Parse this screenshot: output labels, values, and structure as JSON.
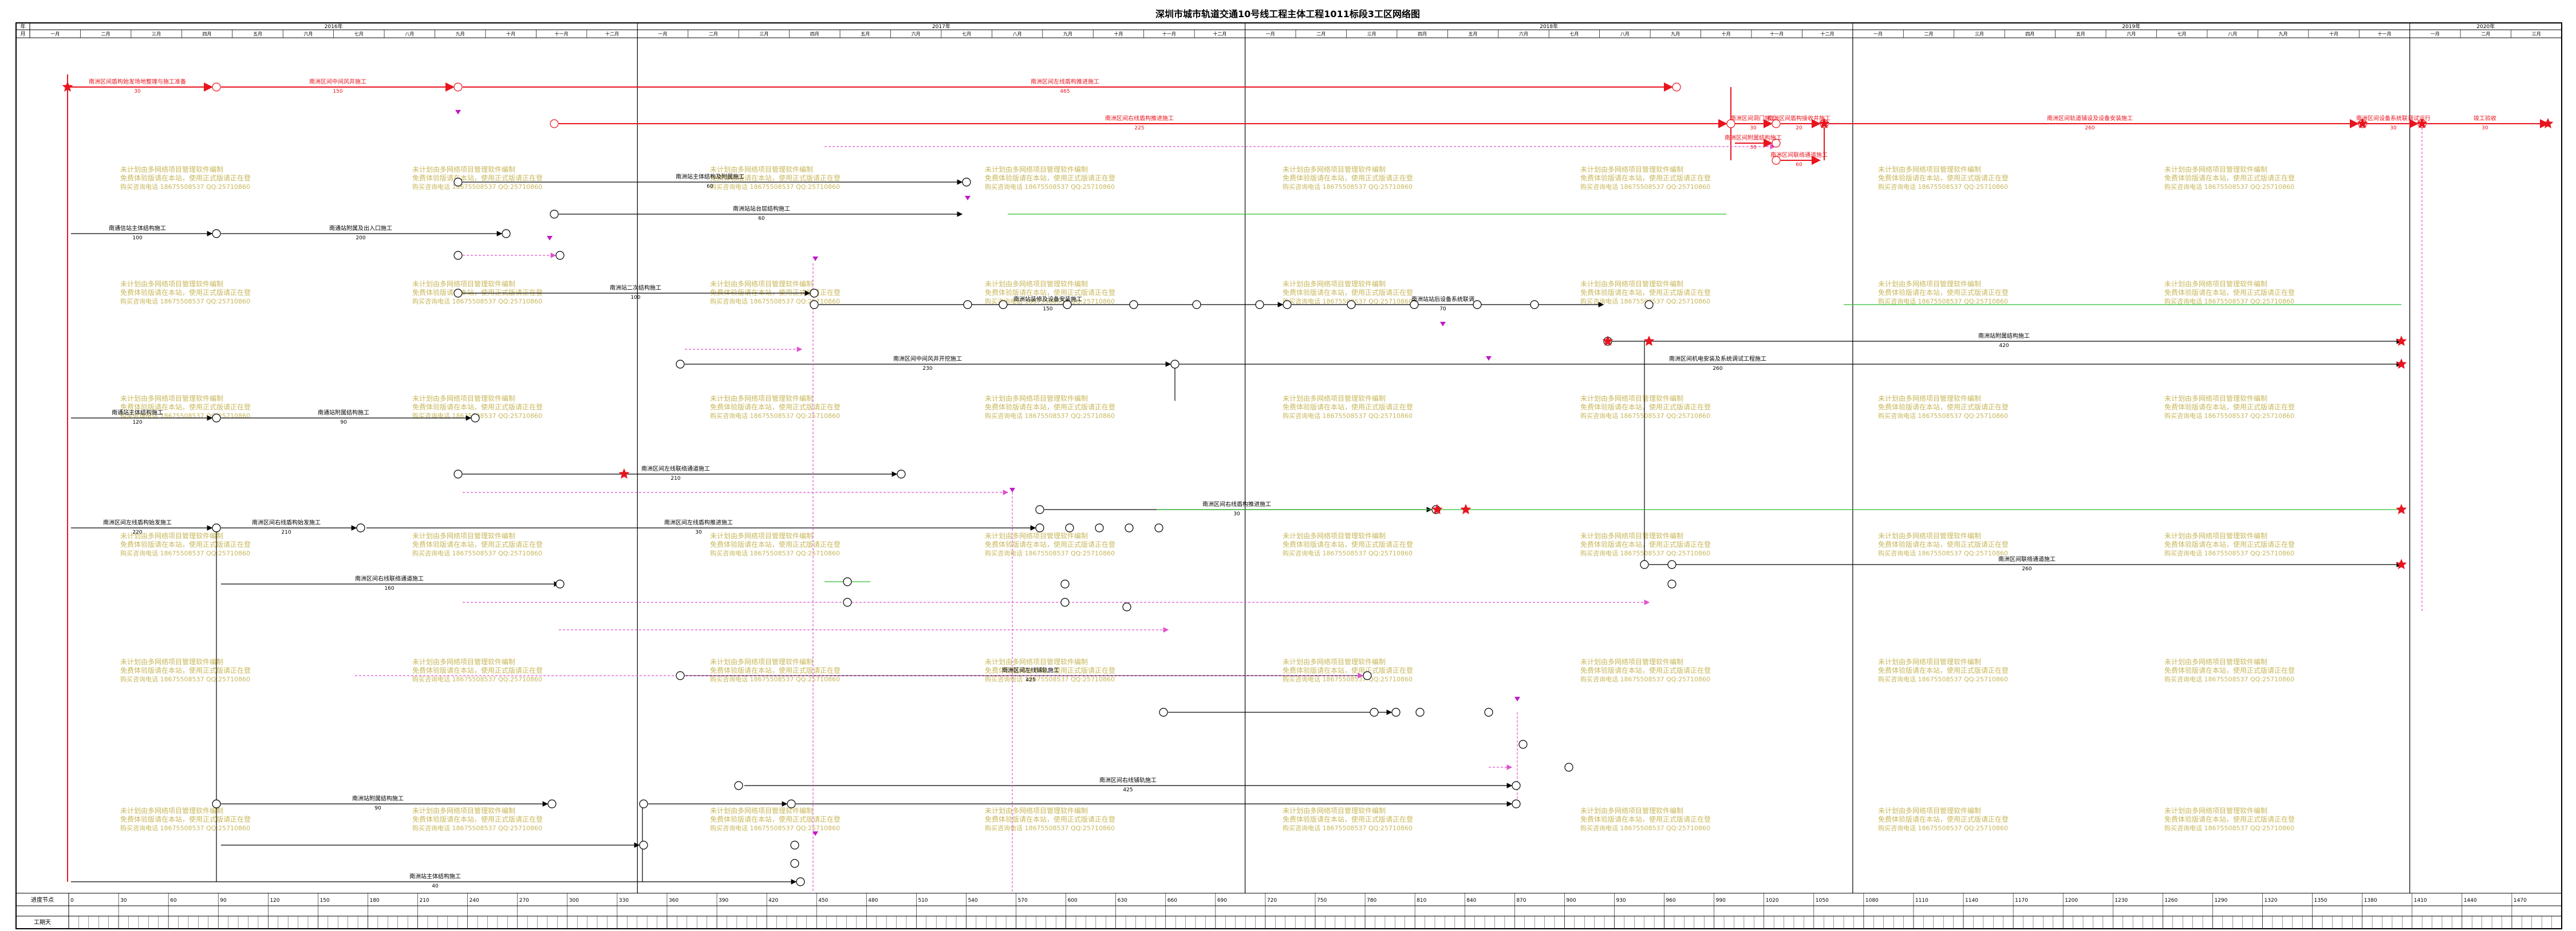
{
  "title": "深圳市城市轨道交通10号线工程主体工程1011标段3工区网络图",
  "row_labels": {
    "year": "年",
    "month": "月",
    "period_progress": "进度节点",
    "work_days": "工期天"
  },
  "years": [
    {
      "label": "2016年",
      "span": [
        0,
        12
      ]
    },
    {
      "label": "2017年",
      "span": [
        12,
        24
      ]
    },
    {
      "label": "2018年",
      "span": [
        24,
        36
      ]
    },
    {
      "label": "2019年",
      "span": [
        36,
        47
      ]
    },
    {
      "label": "2020年",
      "span": [
        47,
        50
      ]
    }
  ],
  "months": [
    "一月",
    "二月",
    "三月",
    "四月",
    "五月",
    "六月",
    "七月",
    "八月",
    "九月",
    "十月",
    "十一月",
    "十二月",
    "一月",
    "二月",
    "三月",
    "四月",
    "五月",
    "六月",
    "七月",
    "八月",
    "九月",
    "十月",
    "十一月",
    "十二月",
    "一月",
    "二月",
    "三月",
    "四月",
    "五月",
    "六月",
    "七月",
    "八月",
    "九月",
    "十月",
    "十一月",
    "十二月",
    "一月",
    "二月",
    "三月",
    "四月",
    "五月",
    "六月",
    "七月",
    "八月",
    "九月",
    "十月",
    "十一月",
    "一月",
    "二月",
    "三月"
  ],
  "day_ticks": [
    "0",
    "30",
    "60",
    "90",
    "120",
    "150",
    "180",
    "210",
    "240",
    "270",
    "300",
    "330",
    "360",
    "390",
    "420",
    "450",
    "480",
    "510",
    "540",
    "570",
    "600",
    "630",
    "660",
    "690",
    "720",
    "750",
    "780",
    "810",
    "840",
    "870",
    "900",
    "930",
    "960",
    "990",
    "1020",
    "1050",
    "1080",
    "1110",
    "1140",
    "1170",
    "1200",
    "1230",
    "1260",
    "1290",
    "1320",
    "1350",
    "1380",
    "1410",
    "1440",
    "1470"
  ],
  "watermark": {
    "line1": "未计划由多网络项目管理软件编制",
    "line2": "免费体验版请在本站，使用正式版请正在登",
    "line3": "购买咨询电话 18675508537 QQ:25710860"
  },
  "colors": {
    "critical": "#e8141e",
    "normal": "#000000",
    "free_float": "#e04fd0",
    "milestone": "#c218c8",
    "progress": "#2dbd2d"
  },
  "activities": [
    {
      "id": "a1",
      "label": "南洲区间盾构始发场地整理与施工准备",
      "duration": "30",
      "kind": "critical"
    },
    {
      "id": "a2",
      "label": "南洲区间中间风井施工",
      "duration": "150",
      "kind": "critical"
    },
    {
      "id": "a3",
      "label": "南洲区间左线盾构推进施工",
      "duration": "465",
      "kind": "critical"
    },
    {
      "id": "a4",
      "label": "南洲区间右线盾构推进施工",
      "duration": "225",
      "kind": "critical"
    },
    {
      "id": "a5",
      "label": "南洲区间洞门施工",
      "duration": "30",
      "kind": "critical"
    },
    {
      "id": "a6",
      "label": "南洲区间盾构接收井施工",
      "duration": "20",
      "kind": "critical"
    },
    {
      "id": "a7",
      "label": "南洲区间附属结构施工",
      "duration": "30",
      "kind": "critical"
    },
    {
      "id": "a8",
      "label": "南洲区间联络通道施工",
      "duration": "60",
      "kind": "critical"
    },
    {
      "id": "a9",
      "label": "南洲区间轨道铺设及设备安装施工",
      "duration": "260",
      "kind": "critical"
    },
    {
      "id": "a10",
      "label": "南洲区间设备系统联调试运行",
      "duration": "30",
      "kind": "critical"
    },
    {
      "id": "a11",
      "label": "竣工验收",
      "duration": "30",
      "kind": "critical"
    },
    {
      "id": "b1",
      "label": "南通信站主体结构施工",
      "duration": "100",
      "kind": "normal"
    },
    {
      "id": "b2",
      "label": "南通站附属及出入口施工",
      "duration": "200",
      "kind": "normal"
    },
    {
      "id": "b3",
      "label": "南通站主体结构施工",
      "duration": "120",
      "kind": "normal"
    },
    {
      "id": "b4",
      "label": "南通站附属结构施工",
      "duration": "90",
      "kind": "normal"
    },
    {
      "id": "c1",
      "label": "南洲区间左线盾构始发施工",
      "duration": "220",
      "kind": "normal"
    },
    {
      "id": "c2",
      "label": "南洲区间右线盾构始发施工",
      "duration": "210",
      "kind": "normal"
    },
    {
      "id": "d1",
      "label": "南洲站主体结构及附属施工",
      "duration": "60",
      "kind": "normal"
    },
    {
      "id": "d2",
      "label": "南洲站站台层结构施工",
      "duration": "60",
      "kind": "normal"
    },
    {
      "id": "d3",
      "label": "南洲站二次结构施工",
      "duration": "100",
      "kind": "normal"
    },
    {
      "id": "d4",
      "label": "南洲站装修及设备安装施工",
      "duration": "150",
      "kind": "normal"
    },
    {
      "id": "d5",
      "label": "南洲站站后设备系统联调",
      "duration": "70",
      "kind": "normal"
    },
    {
      "id": "d6",
      "label": "南洲站附属结构施工",
      "duration": "420",
      "kind": "normal"
    },
    {
      "id": "e1",
      "label": "南洲区间中间风井开挖施工",
      "duration": "230",
      "kind": "normal"
    },
    {
      "id": "e2",
      "label": "南洲区间左线联络通道施工",
      "duration": "210",
      "kind": "normal"
    },
    {
      "id": "e3",
      "label": "南洲区间右线联络通道施工",
      "duration": "160",
      "kind": "normal"
    },
    {
      "id": "e4",
      "label": "南洲区间左线铺轨施工",
      "duration": "425",
      "kind": "normal"
    },
    {
      "id": "e5",
      "label": "南洲区间右线铺轨施工",
      "duration": "425",
      "kind": "normal"
    },
    {
      "id": "f1",
      "label": "南洲区间左线盾构推进施工",
      "duration": "30",
      "kind": "normal"
    },
    {
      "id": "f2",
      "label": "南洲区间右线盾构推进施工",
      "duration": "30",
      "kind": "normal"
    },
    {
      "id": "f3",
      "label": "南洲区间联络通道施工",
      "duration": "260",
      "kind": "normal"
    },
    {
      "id": "g1",
      "label": "南洲区间机电安装及系统调试工程施工",
      "duration": "260",
      "kind": "normal"
    },
    {
      "id": "g2",
      "label": "南洲站附属结构施工",
      "duration": "90",
      "kind": "normal"
    },
    {
      "id": "g3",
      "label": "南洲站主体结构施工",
      "duration": "40",
      "kind": "normal"
    }
  ]
}
